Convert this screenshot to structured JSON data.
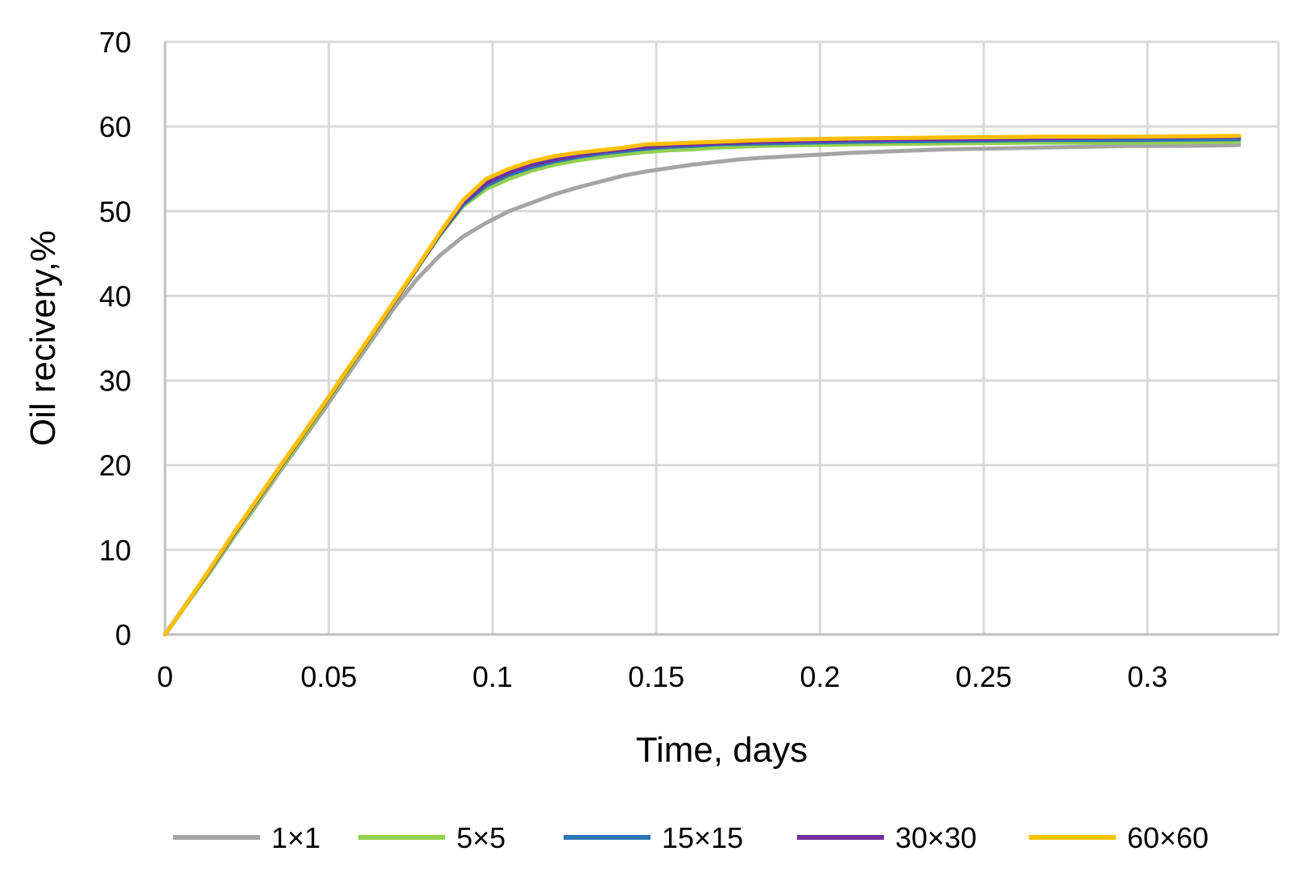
{
  "chart_data": {
    "type": "line",
    "title": "",
    "xlabel": "Time, days",
    "ylabel": "Oil recivery,%",
    "xlim": [
      0,
      0.34
    ],
    "ylim": [
      0,
      70
    ],
    "xticks": [
      0,
      0.05,
      0.1,
      0.15,
      0.2,
      0.25,
      0.3
    ],
    "xtick_labels": [
      "0",
      "0.05",
      "0.1",
      "0.15",
      "0.2",
      "0.25",
      "0.3"
    ],
    "yticks": [
      0,
      10,
      20,
      30,
      40,
      50,
      60,
      70
    ],
    "ytick_labels": [
      "0",
      "10",
      "20",
      "30",
      "40",
      "50",
      "60",
      "70"
    ],
    "grid": true,
    "legend_position": "bottom",
    "series": [
      {
        "name": "1×1",
        "color": "#a5a5a5",
        "x": [
          0,
          0.007,
          0.014,
          0.021,
          0.028,
          0.035,
          0.042,
          0.049,
          0.056,
          0.063,
          0.07,
          0.077,
          0.084,
          0.091,
          0.098,
          0.105,
          0.112,
          0.119,
          0.126,
          0.133,
          0.14,
          0.147,
          0.154,
          0.161,
          0.168,
          0.175,
          0.182,
          0.196,
          0.21,
          0.224,
          0.238,
          0.252,
          0.266,
          0.28,
          0.294,
          0.308,
          0.328
        ],
        "y": [
          0,
          3.8,
          7.5,
          11.5,
          15.3,
          19.2,
          23.0,
          26.8,
          30.8,
          34.7,
          38.6,
          42.0,
          44.8,
          47.0,
          48.6,
          50.0,
          51.0,
          52.0,
          52.8,
          53.5,
          54.2,
          54.7,
          55.1,
          55.5,
          55.8,
          56.1,
          56.3,
          56.6,
          56.9,
          57.1,
          57.3,
          57.4,
          57.5,
          57.6,
          57.7,
          57.7,
          57.8
        ]
      },
      {
        "name": "5×5",
        "color": "#92d050",
        "x": [
          0,
          0.007,
          0.014,
          0.021,
          0.028,
          0.035,
          0.042,
          0.049,
          0.056,
          0.063,
          0.07,
          0.077,
          0.084,
          0.091,
          0.098,
          0.105,
          0.112,
          0.119,
          0.126,
          0.133,
          0.14,
          0.147,
          0.154,
          0.161,
          0.168,
          0.182,
          0.196,
          0.21,
          0.238,
          0.266,
          0.294,
          0.328
        ],
        "y": [
          0,
          3.8,
          7.6,
          11.6,
          15.5,
          19.4,
          23.2,
          27.2,
          31.2,
          35.1,
          39.2,
          43.2,
          47.2,
          50.6,
          52.6,
          53.8,
          54.8,
          55.5,
          56.0,
          56.4,
          56.7,
          57.0,
          57.2,
          57.3,
          57.5,
          57.7,
          57.8,
          57.9,
          58.0,
          58.1,
          58.1,
          58.2
        ]
      },
      {
        "name": "15×15",
        "color": "#2e75b6",
        "x": [
          0,
          0.007,
          0.014,
          0.021,
          0.028,
          0.035,
          0.042,
          0.049,
          0.056,
          0.063,
          0.07,
          0.077,
          0.084,
          0.091,
          0.098,
          0.105,
          0.112,
          0.119,
          0.126,
          0.133,
          0.14,
          0.147,
          0.154,
          0.161,
          0.168,
          0.182,
          0.196,
          0.21,
          0.238,
          0.266,
          0.294,
          0.328
        ],
        "y": [
          0,
          3.9,
          7.8,
          11.9,
          15.8,
          19.8,
          23.6,
          27.5,
          31.5,
          35.3,
          39.3,
          43.3,
          47.3,
          50.8,
          53.0,
          54.3,
          55.2,
          55.9,
          56.4,
          56.8,
          57.1,
          57.4,
          57.6,
          57.7,
          57.9,
          58.0,
          58.1,
          58.2,
          58.3,
          58.4,
          58.4,
          58.5
        ]
      },
      {
        "name": "30×30",
        "color": "#7030a0",
        "x": [
          0,
          0.007,
          0.014,
          0.021,
          0.028,
          0.035,
          0.042,
          0.049,
          0.056,
          0.063,
          0.07,
          0.077,
          0.084,
          0.091,
          0.098,
          0.105,
          0.112,
          0.119,
          0.126,
          0.133,
          0.14,
          0.147,
          0.154,
          0.161,
          0.168,
          0.182,
          0.196,
          0.21,
          0.238,
          0.266,
          0.294,
          0.328
        ],
        "y": [
          0,
          3.9,
          7.8,
          11.9,
          15.8,
          19.7,
          23.5,
          27.4,
          31.4,
          35.3,
          39.3,
          43.3,
          47.4,
          51.0,
          53.3,
          54.6,
          55.5,
          56.1,
          56.6,
          57.0,
          57.3,
          57.6,
          57.8,
          57.9,
          58.0,
          58.2,
          58.3,
          58.4,
          58.5,
          58.6,
          58.7,
          58.8
        ]
      },
      {
        "name": "60×60",
        "color": "#ffc000",
        "x": [
          0,
          0.007,
          0.014,
          0.021,
          0.028,
          0.035,
          0.042,
          0.049,
          0.056,
          0.063,
          0.07,
          0.077,
          0.084,
          0.091,
          0.098,
          0.105,
          0.112,
          0.119,
          0.126,
          0.133,
          0.14,
          0.147,
          0.154,
          0.161,
          0.168,
          0.182,
          0.196,
          0.21,
          0.238,
          0.266,
          0.294,
          0.328
        ],
        "y": [
          0,
          3.9,
          7.9,
          12.0,
          15.9,
          19.8,
          23.6,
          27.5,
          31.5,
          35.4,
          39.4,
          43.4,
          47.5,
          51.3,
          53.8,
          55.0,
          55.9,
          56.5,
          56.9,
          57.2,
          57.5,
          57.9,
          58.0,
          58.1,
          58.2,
          58.4,
          58.5,
          58.6,
          58.7,
          58.8,
          58.8,
          58.9
        ]
      }
    ]
  }
}
